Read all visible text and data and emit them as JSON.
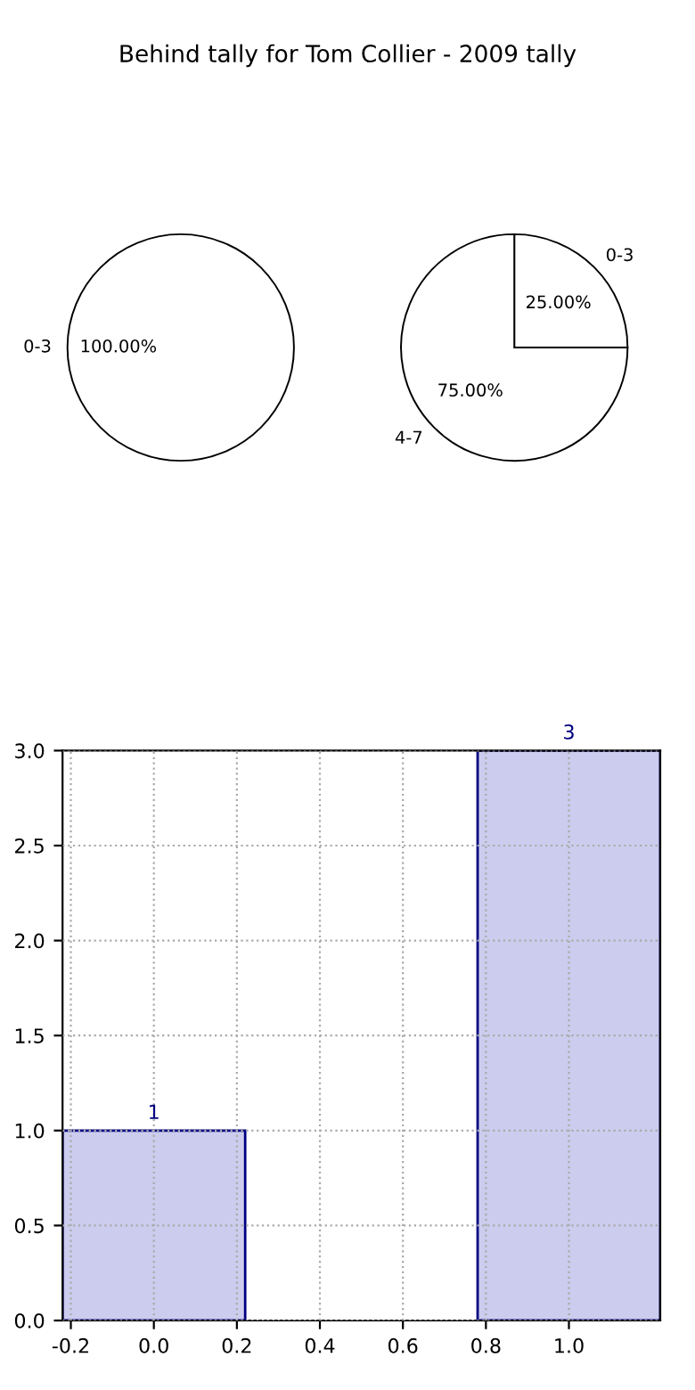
{
  "chart_data": [
    {
      "type": "pie",
      "title": "Behind tally for Tom Collier - 2009 tally",
      "categories": [
        "0-3"
      ],
      "values": [
        100
      ],
      "colors": [
        "#ffffff"
      ],
      "value_labels": [
        "100.00%"
      ]
    },
    {
      "type": "pie",
      "categories": [
        "0-3",
        "4-7"
      ],
      "values": [
        25,
        75
      ],
      "colors": [
        "#ffffff",
        "#ffffff"
      ],
      "value_labels": [
        "25.00%",
        "75.00%"
      ]
    },
    {
      "type": "bar",
      "x": [
        0,
        1
      ],
      "values": [
        1,
        3
      ],
      "color": "#ccccee",
      "data_labels": true,
      "xlim": [
        -0.22,
        1.22
      ],
      "ylim": [
        0,
        3
      ],
      "xticks": [
        -0.2,
        {
          "value": 0,
          "label": "0.0"
        },
        0.2,
        0.4,
        0.6,
        0.8,
        {
          "value": 1,
          "label": "1.0"
        }
      ],
      "yticks": [
        {
          "value": 0,
          "label": "0.0"
        },
        0.5,
        {
          "value": 1,
          "label": "1.0"
        },
        1.5,
        {
          "value": 2,
          "label": "2.0"
        },
        2.5,
        {
          "value": 3,
          "label": "3.0"
        }
      ],
      "grid": true,
      "line_style": "dotted"
    }
  ]
}
